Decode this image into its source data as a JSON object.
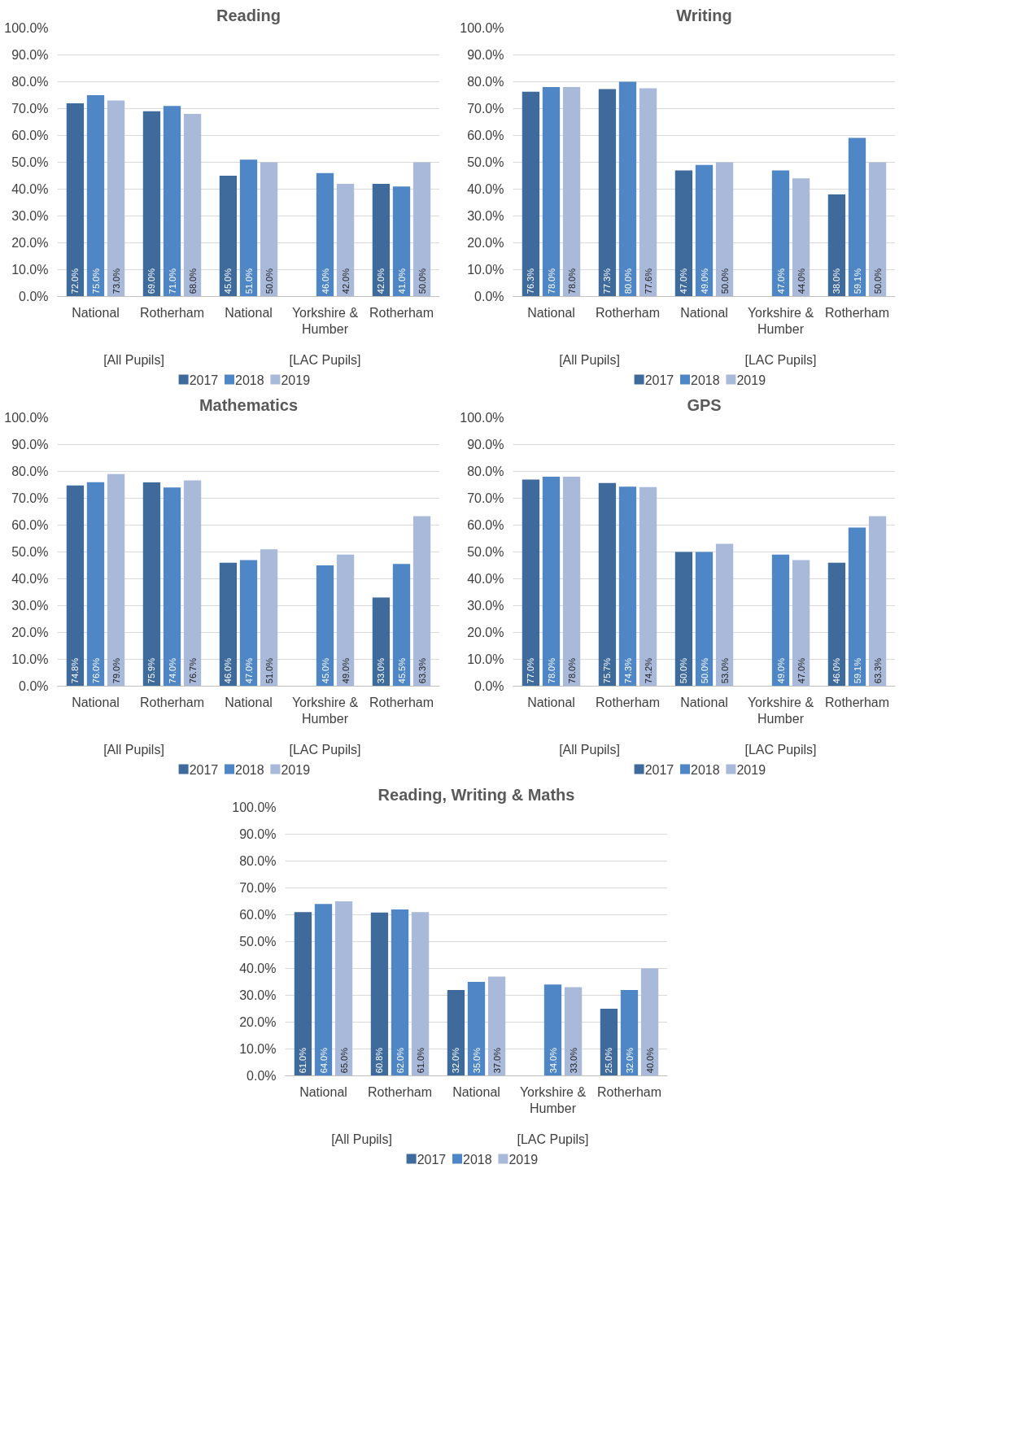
{
  "chart_data": [
    {
      "type": "bar",
      "title": "Reading",
      "categories": [
        "National",
        "Rotherham",
        "National",
        "Yorkshire & Humber",
        "Rotherham"
      ],
      "annotations": [
        "[All Pupils]",
        "[LAC Pupils]"
      ],
      "series": [
        {
          "name": "2017",
          "color": "#3f6a9c",
          "values": [
            72.0,
            69.0,
            45.0,
            null,
            42.0
          ],
          "value_labels": [
            "72.0%",
            "69.0%",
            "45.0%",
            null,
            "42.0%"
          ]
        },
        {
          "name": "2018",
          "color": "#4f86c6",
          "values": [
            75.0,
            71.0,
            51.0,
            46.0,
            41.0
          ],
          "value_labels": [
            "75.0%",
            "71.0%",
            "51.0%",
            "46.0%",
            "41.0%"
          ]
        },
        {
          "name": "2019",
          "color": "#a9b9d9",
          "values": [
            73.0,
            68.0,
            50.0,
            42.0,
            50.0
          ],
          "value_labels": [
            "73.0%",
            "68.0%",
            "50.0%",
            "42.0%",
            "50.0%"
          ]
        }
      ],
      "ylim": [
        0,
        100
      ],
      "yticks": [
        {
          "value": 0,
          "label": "0.0%"
        },
        {
          "value": 10,
          "label": "10.0%"
        },
        {
          "value": 20,
          "label": "20.0%"
        },
        {
          "value": 30,
          "label": "30.0%"
        },
        {
          "value": 40,
          "label": "40.0%"
        },
        {
          "value": 50,
          "label": "50.0%"
        },
        {
          "value": 60,
          "label": "60.0%"
        },
        {
          "value": 70,
          "label": "70.0%"
        },
        {
          "value": 80,
          "label": "80.0%"
        },
        {
          "value": 90,
          "label": "90.0%"
        },
        {
          "value": 100,
          "label": "100.0%"
        }
      ],
      "grid": "y",
      "legend": "bottom"
    },
    {
      "type": "bar",
      "title": "Writing",
      "categories": [
        "National",
        "Rotherham",
        "National",
        "Yorkshire & Humber",
        "Rotherham"
      ],
      "annotations": [
        "[All Pupils]",
        "[LAC Pupils]"
      ],
      "series": [
        {
          "name": "2017",
          "color": "#3f6a9c",
          "values": [
            76.3,
            77.3,
            47.0,
            null,
            38.0
          ],
          "value_labels": [
            "76.3%",
            "77.3%",
            "47.0%",
            null,
            "38.0%"
          ]
        },
        {
          "name": "2018",
          "color": "#4f86c6",
          "values": [
            78.0,
            80.0,
            49.0,
            47.0,
            59.1
          ],
          "value_labels": [
            "78.0%",
            "80.0%",
            "49.0%",
            "47.0%",
            "59.1%"
          ]
        },
        {
          "name": "2019",
          "color": "#a9b9d9",
          "values": [
            78.0,
            77.6,
            50.0,
            44.0,
            50.0
          ],
          "value_labels": [
            "78.0%",
            "77.6%",
            "50.0%",
            "44.0%",
            "50.0%"
          ]
        }
      ],
      "ylim": [
        0,
        100
      ],
      "yticks": [
        {
          "value": 0,
          "label": "0.0%"
        },
        {
          "value": 10,
          "label": "10.0%"
        },
        {
          "value": 20,
          "label": "20.0%"
        },
        {
          "value": 30,
          "label": "30.0%"
        },
        {
          "value": 40,
          "label": "40.0%"
        },
        {
          "value": 50,
          "label": "50.0%"
        },
        {
          "value": 60,
          "label": "60.0%"
        },
        {
          "value": 70,
          "label": "70.0%"
        },
        {
          "value": 80,
          "label": "80.0%"
        },
        {
          "value": 90,
          "label": "90.0%"
        },
        {
          "value": 100,
          "label": "100.0%"
        }
      ],
      "grid": "y",
      "legend": "bottom"
    },
    {
      "type": "bar",
      "title": "Mathematics",
      "categories": [
        "National",
        "Rotherham",
        "National",
        "Yorkshire & Humber",
        "Rotherham"
      ],
      "annotations": [
        "[All Pupils]",
        "[LAC Pupils]"
      ],
      "series": [
        {
          "name": "2017",
          "color": "#3f6a9c",
          "values": [
            74.8,
            75.9,
            46.0,
            null,
            33.0
          ],
          "value_labels": [
            "74.8%",
            "75.9%",
            "46.0%",
            null,
            "33.0%"
          ]
        },
        {
          "name": "2018",
          "color": "#4f86c6",
          "values": [
            76.0,
            74.0,
            47.0,
            45.0,
            45.5
          ],
          "value_labels": [
            "76.0%",
            "74.0%",
            "47.0%",
            "45.0%",
            "45.5%"
          ]
        },
        {
          "name": "2019",
          "color": "#a9b9d9",
          "values": [
            79.0,
            76.7,
            51.0,
            49.0,
            63.3
          ],
          "value_labels": [
            "79.0%",
            "76.7%",
            "51.0%",
            "49.0%",
            "63.3%"
          ]
        }
      ],
      "ylim": [
        0,
        100
      ],
      "yticks": [
        {
          "value": 0,
          "label": "0.0%"
        },
        {
          "value": 10,
          "label": "10.0%"
        },
        {
          "value": 20,
          "label": "20.0%"
        },
        {
          "value": 30,
          "label": "30.0%"
        },
        {
          "value": 40,
          "label": "40.0%"
        },
        {
          "value": 50,
          "label": "50.0%"
        },
        {
          "value": 60,
          "label": "60.0%"
        },
        {
          "value": 70,
          "label": "70.0%"
        },
        {
          "value": 80,
          "label": "80.0%"
        },
        {
          "value": 90,
          "label": "90.0%"
        },
        {
          "value": 100,
          "label": "100.0%"
        }
      ],
      "grid": "y",
      "legend": "bottom"
    },
    {
      "type": "bar",
      "title": "GPS",
      "categories": [
        "National",
        "Rotherham",
        "National",
        "Yorkshire & Humber",
        "Rotherham"
      ],
      "annotations": [
        "[All Pupils]",
        "[LAC Pupils]"
      ],
      "series": [
        {
          "name": "2017",
          "color": "#3f6a9c",
          "values": [
            77.0,
            75.7,
            50.0,
            null,
            46.0
          ],
          "value_labels": [
            "77.0%",
            "75.7%",
            "50.0%",
            null,
            "46.0%"
          ]
        },
        {
          "name": "2018",
          "color": "#4f86c6",
          "values": [
            78.0,
            74.3,
            50.0,
            49.0,
            59.1
          ],
          "value_labels": [
            "78.0%",
            "74.3%",
            "50.0%",
            "49.0%",
            "59.1%"
          ]
        },
        {
          "name": "2019",
          "color": "#a9b9d9",
          "values": [
            78.0,
            74.2,
            53.0,
            47.0,
            63.3
          ],
          "value_labels": [
            "78.0%",
            "74.2%",
            "53.0%",
            "47.0%",
            "63.3%"
          ]
        }
      ],
      "ylim": [
        0,
        100
      ],
      "yticks": [
        {
          "value": 0,
          "label": "0.0%"
        },
        {
          "value": 10,
          "label": "10.0%"
        },
        {
          "value": 20,
          "label": "20.0%"
        },
        {
          "value": 30,
          "label": "30.0%"
        },
        {
          "value": 40,
          "label": "40.0%"
        },
        {
          "value": 50,
          "label": "50.0%"
        },
        {
          "value": 60,
          "label": "60.0%"
        },
        {
          "value": 70,
          "label": "70.0%"
        },
        {
          "value": 80,
          "label": "80.0%"
        },
        {
          "value": 90,
          "label": "90.0%"
        },
        {
          "value": 100,
          "label": "100.0%"
        }
      ],
      "grid": "y",
      "legend": "bottom"
    },
    {
      "type": "bar",
      "title": "Reading, Writing & Maths",
      "categories": [
        "National",
        "Rotherham",
        "National",
        "Yorkshire & Humber",
        "Rotherham"
      ],
      "annotations": [
        "[All Pupils]",
        "[LAC Pupils]"
      ],
      "series": [
        {
          "name": "2017",
          "color": "#3f6a9c",
          "values": [
            61.0,
            60.8,
            32.0,
            null,
            25.0
          ],
          "value_labels": [
            "61.0%",
            "60.8%",
            "32.0%",
            null,
            "25.0%"
          ]
        },
        {
          "name": "2018",
          "color": "#4f86c6",
          "values": [
            64.0,
            62.0,
            35.0,
            34.0,
            32.0
          ],
          "value_labels": [
            "64.0%",
            "62.0%",
            "35.0%",
            "34.0%",
            "32.0%"
          ]
        },
        {
          "name": "2019",
          "color": "#a9b9d9",
          "values": [
            65.0,
            61.0,
            37.0,
            33.0,
            40.0
          ],
          "value_labels": [
            "65.0%",
            "61.0%",
            "37.0%",
            "33.0%",
            "40.0%"
          ]
        }
      ],
      "ylim": [
        0,
        100
      ],
      "yticks": [
        {
          "value": 0,
          "label": "0.0%"
        },
        {
          "value": 10,
          "label": "10.0%"
        },
        {
          "value": 20,
          "label": "20.0%"
        },
        {
          "value": 30,
          "label": "30.0%"
        },
        {
          "value": 40,
          "label": "40.0%"
        },
        {
          "value": 50,
          "label": "50.0%"
        },
        {
          "value": 60,
          "label": "60.0%"
        },
        {
          "value": 70,
          "label": "70.0%"
        },
        {
          "value": 80,
          "label": "80.0%"
        },
        {
          "value": 90,
          "label": "90.0%"
        },
        {
          "value": 100,
          "label": "100.0%"
        }
      ],
      "grid": "y",
      "legend": "bottom"
    }
  ]
}
